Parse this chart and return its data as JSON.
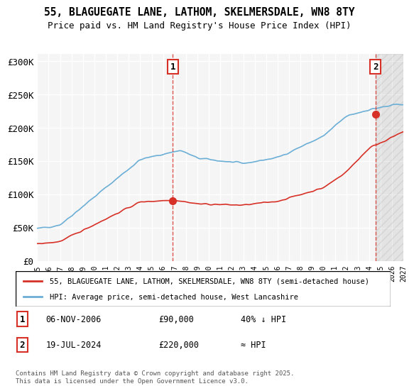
{
  "title_line1": "55, BLAGUEGATE LANE, LATHOM, SKELMERSDALE, WN8 8TY",
  "title_line2": "Price paid vs. HM Land Registry's House Price Index (HPI)",
  "ylabel": "",
  "ylim": [
    0,
    310000
  ],
  "yticks": [
    0,
    50000,
    100000,
    150000,
    200000,
    250000,
    300000
  ],
  "ytick_labels": [
    "£0",
    "£50K",
    "£100K",
    "£150K",
    "£200K",
    "£250K",
    "£300K"
  ],
  "hpi_color": "#6baed6",
  "price_color": "#d73027",
  "vline_color": "#d73027",
  "background_color": "#f5f5f5",
  "grid_color": "#ffffff",
  "legend_line1": "55, BLAGUEGATE LANE, LATHOM, SKELMERSDALE, WN8 8TY (semi-detached house)",
  "legend_line2": "HPI: Average price, semi-detached house, West Lancashire",
  "annotation1_label": "1",
  "annotation1_date": "06-NOV-2006",
  "annotation1_price": "£90,000",
  "annotation1_hpi": "40% ↓ HPI",
  "annotation2_label": "2",
  "annotation2_date": "19-JUL-2024",
  "annotation2_price": "£220,000",
  "annotation2_hpi": "≈ HPI",
  "footer": "Contains HM Land Registry data © Crown copyright and database right 2025.\nThis data is licensed under the Open Government Licence v3.0.",
  "sale1_year": 2006.85,
  "sale1_price": 90000,
  "sale2_year": 2024.55,
  "sale2_price": 220000
}
